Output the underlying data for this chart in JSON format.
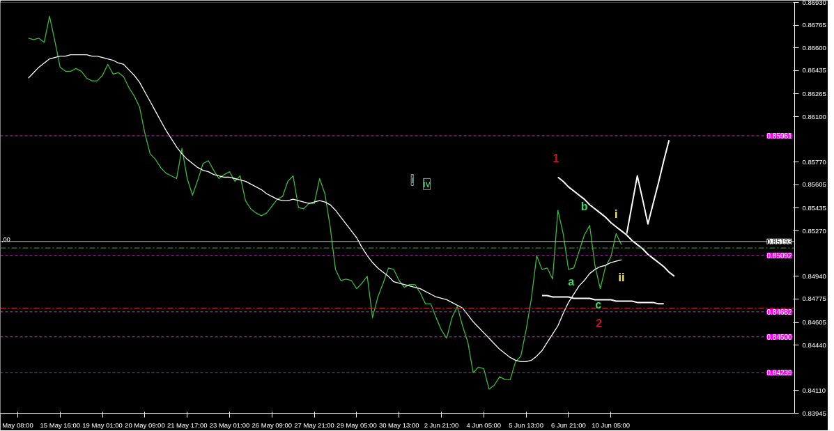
{
  "chart_data": {
    "type": "line",
    "categories": [
      "May 08:00",
      null,
      null,
      null,
      null,
      null,
      null,
      null,
      "15 May 16:00",
      null,
      null,
      null,
      null,
      null,
      null,
      null,
      "19 May 01:00",
      null,
      null,
      null,
      null,
      null,
      null,
      null,
      "20 May 09:00",
      null,
      null,
      null,
      null,
      null,
      null,
      null,
      "21 May 17:00",
      null,
      null,
      null,
      null,
      null,
      null,
      null,
      "23 May 01:00",
      null,
      null,
      null,
      null,
      null,
      null,
      null,
      "26 May 09:00",
      null,
      null,
      null,
      null,
      null,
      null,
      null,
      "27 May 21:00",
      null,
      null,
      null,
      null,
      null,
      null,
      null,
      "29 May 05:00",
      null,
      null,
      null,
      null,
      null,
      null,
      null,
      "30 May 13:00",
      null,
      null,
      null,
      null,
      null,
      null,
      null,
      "2 Jun 21:00",
      null,
      null,
      null,
      null,
      null,
      null,
      null,
      "4 Jun 05:00",
      null,
      null,
      null,
      null,
      null,
      null,
      null,
      "5 Jun 13:00",
      null,
      null,
      null,
      null,
      null,
      null,
      null,
      "6 Jun 21:00",
      null,
      null,
      null,
      null,
      null,
      null,
      null,
      "10 Jun 05:00",
      null,
      null,
      null,
      null,
      null,
      null,
      null,
      null,
      null,
      null,
      null,
      null,
      null,
      null,
      null,
      null,
      null,
      null,
      null,
      null,
      null,
      null,
      null,
      null,
      null,
      null,
      null,
      null,
      null,
      null,
      null,
      null,
      null
    ],
    "ylim": [
      0.83945,
      0.8693
    ],
    "yticks": [
      {
        "value": 0.8693,
        "label": "0.86930"
      },
      {
        "value": 0.86765,
        "label": "0.86765"
      },
      {
        "value": 0.866,
        "label": "0.86600"
      },
      {
        "value": 0.86435,
        "label": "0.86435"
      },
      {
        "value": 0.86265,
        "label": "0.86265"
      },
      {
        "value": 0.861,
        "label": "0.86100"
      },
      {
        "value": 0.8577,
        "label": "0.85770"
      },
      {
        "value": 0.85605,
        "label": "0.85605"
      },
      {
        "value": 0.85435,
        "label": "0.85435"
      },
      {
        "value": 0.8527,
        "label": "0.85270"
      },
      {
        "value": 0.8494,
        "label": "0.84940"
      },
      {
        "value": 0.84775,
        "label": "0.84775"
      },
      {
        "value": 0.84605,
        "label": "0.84605"
      },
      {
        "value": 0.8444,
        "label": "0.84440"
      },
      {
        "value": 0.8411,
        "label": "0.84110"
      },
      {
        "value": 0.83945,
        "label": "0.83945"
      }
    ],
    "grid": false,
    "line_style": "solid",
    "series": [
      {
        "color": "#3cb93c",
        "values": [
          null,
          null,
          0.8667,
          0.8666,
          0.8667,
          0.8664,
          0.8683,
          0.8665,
          0.8646,
          0.8643,
          0.8643,
          0.8645,
          0.8643,
          0.8638,
          0.8636,
          0.8636,
          0.864,
          0.8648,
          0.8641,
          0.8642,
          0.8639,
          0.8631,
          0.8625,
          0.8617,
          0.8598,
          0.8583,
          0.8579,
          0.8573,
          0.8569,
          0.8567,
          0.8565,
          0.8587,
          0.8565,
          0.8553,
          0.8564,
          0.8576,
          0.8578,
          0.8571,
          0.8565,
          0.8568,
          0.857,
          0.8563,
          0.8567,
          0.8549,
          0.8543,
          0.854,
          0.8538,
          0.854,
          0.8545,
          0.855,
          0.8552,
          0.8563,
          0.8567,
          0.8544,
          0.8543,
          0.8547,
          0.8547,
          0.8565,
          0.8554,
          0.853,
          0.8499,
          0.8491,
          0.8492,
          0.8491,
          0.8485,
          0.8489,
          0.8494,
          0.8464,
          0.8479,
          0.8489,
          0.85,
          0.8499,
          0.8491,
          0.8486,
          0.8488,
          0.8488,
          0.8482,
          0.8474,
          0.8474,
          0.8464,
          0.8455,
          0.8449,
          0.8464,
          0.8472,
          0.8458,
          0.8446,
          0.8424,
          0.8428,
          0.8427,
          0.8412,
          0.8415,
          0.8421,
          0.8419,
          0.8419,
          0.8432,
          0.8436,
          0.8455,
          0.8478,
          0.8509,
          0.8499,
          0.85,
          0.8492,
          0.8542,
          0.8525,
          0.8499,
          0.85,
          0.8512,
          0.8524,
          0.8531,
          0.8502,
          0.8485,
          0.8501,
          0.8508,
          0.8525,
          0.8517,
          null,
          null,
          null,
          null,
          null,
          null,
          null,
          null,
          null,
          null,
          null,
          null,
          null,
          null,
          null,
          null,
          null,
          null,
          null,
          null,
          null,
          null,
          null,
          null,
          null,
          null,
          null,
          null,
          null,
          null,
          null
        ]
      },
      {
        "color": "#ffffff",
        "values": [
          null,
          null,
          0.8638,
          0.8642,
          0.8646,
          0.8649,
          0.8652,
          0.8653,
          0.8654,
          0.8654,
          0.8655,
          0.8655,
          0.8655,
          0.8655,
          0.8654,
          0.8654,
          0.8653,
          0.8652,
          0.8651,
          0.8649,
          0.8648,
          0.8644,
          0.864,
          0.8635,
          0.8628,
          0.8621,
          0.8614,
          0.8607,
          0.86,
          0.8594,
          0.8588,
          0.8583,
          0.8579,
          0.8576,
          0.8573,
          0.8571,
          0.857,
          0.8568,
          0.8567,
          0.8566,
          0.8566,
          0.8565,
          0.8564,
          0.8563,
          0.8561,
          0.8559,
          0.8557,
          0.8554,
          0.8552,
          0.855,
          0.8549,
          0.8549,
          0.855,
          0.8549,
          0.8548,
          0.8547,
          0.8548,
          0.8549,
          0.8548,
          0.8546,
          0.8542,
          0.8537,
          0.8532,
          0.8527,
          0.8522,
          0.8515,
          0.8509,
          0.8504,
          0.85,
          0.8497,
          0.8494,
          0.849,
          0.8489,
          0.8488,
          0.8487,
          0.8486,
          0.8485,
          0.8483,
          0.8481,
          0.8479,
          0.8478,
          0.8477,
          0.8475,
          0.8473,
          0.8471,
          0.8466,
          0.8461,
          0.8457,
          0.8453,
          0.8449,
          0.8445,
          0.8441,
          0.8438,
          0.8435,
          0.8433,
          0.8432,
          0.8432,
          0.8433,
          0.8436,
          0.844,
          0.8446,
          0.8452,
          0.8458,
          0.8467,
          0.8475,
          0.8481,
          0.8487,
          0.8491,
          0.8496,
          0.8499,
          0.8501,
          0.8502,
          0.8504,
          0.8505,
          0.8506,
          null,
          null,
          null,
          null,
          null,
          null,
          null,
          null,
          null,
          null,
          null,
          null,
          null,
          null,
          null,
          null,
          null,
          null,
          null,
          null,
          null,
          null,
          null,
          null,
          null,
          null,
          null,
          null,
          null,
          null,
          null
        ]
      },
      {
        "color": "#ffffff",
        "values": [
          null,
          null,
          null,
          null,
          null,
          null,
          null,
          null,
          null,
          null,
          null,
          null,
          null,
          null,
          null,
          null,
          null,
          null,
          null,
          null,
          null,
          null,
          null,
          null,
          null,
          null,
          null,
          null,
          null,
          null,
          null,
          null,
          null,
          null,
          null,
          null,
          null,
          null,
          null,
          null,
          null,
          null,
          null,
          null,
          null,
          null,
          null,
          null,
          null,
          null,
          null,
          null,
          null,
          null,
          null,
          null,
          null,
          null,
          null,
          null,
          null,
          null,
          null,
          null,
          null,
          null,
          null,
          null,
          null,
          null,
          null,
          null,
          null,
          null,
          null,
          null,
          null,
          null,
          null,
          null,
          null,
          null,
          null,
          null,
          null,
          null,
          null,
          null,
          null,
          null,
          null,
          null,
          null,
          null,
          null,
          null,
          null,
          null,
          null,
          null,
          null,
          null,
          null,
          null,
          null,
          null,
          null,
          null,
          null,
          null,
          null,
          null,
          null,
          null,
          null,
          0.8525,
          0.8546,
          0.8567,
          0.855,
          0.8532,
          0.8547,
          0.8562,
          0.8578,
          0.8593,
          null,
          null,
          null,
          null,
          null,
          null,
          null,
          null,
          null,
          null,
          null,
          null,
          null,
          null,
          null,
          null,
          null,
          null,
          null,
          null,
          null,
          null
        ]
      },
      {
        "color": "#ffffff",
        "values": [
          null,
          null,
          null,
          null,
          null,
          null,
          null,
          null,
          null,
          null,
          null,
          null,
          null,
          null,
          null,
          null,
          null,
          null,
          null,
          null,
          null,
          null,
          null,
          null,
          null,
          null,
          null,
          null,
          null,
          null,
          null,
          null,
          null,
          null,
          null,
          null,
          null,
          null,
          null,
          null,
          null,
          null,
          null,
          null,
          null,
          null,
          null,
          null,
          null,
          null,
          null,
          null,
          null,
          null,
          null,
          null,
          null,
          null,
          null,
          null,
          null,
          null,
          null,
          null,
          null,
          null,
          null,
          null,
          null,
          null,
          null,
          null,
          null,
          null,
          null,
          null,
          null,
          null,
          null,
          null,
          null,
          null,
          null,
          null,
          null,
          null,
          null,
          null,
          null,
          null,
          null,
          null,
          null,
          null,
          null,
          null,
          null,
          null,
          null,
          null,
          null,
          null,
          0.8566,
          0.8563,
          0.8559,
          0.8556,
          0.8553,
          0.855,
          0.8546,
          0.8543,
          0.854,
          0.8537,
          0.8533,
          0.853,
          0.8527,
          0.8524,
          0.852,
          0.8517,
          0.8514,
          0.851,
          0.8507,
          0.8504,
          0.8501,
          0.8497,
          0.8494,
          null,
          null,
          null,
          null,
          null,
          null,
          null,
          null,
          null,
          null,
          null,
          null,
          null,
          null,
          null,
          null,
          null,
          null,
          null,
          null,
          null
        ]
      },
      {
        "color": "#ffffff",
        "values": [
          null,
          null,
          null,
          null,
          null,
          null,
          null,
          null,
          null,
          null,
          null,
          null,
          null,
          null,
          null,
          null,
          null,
          null,
          null,
          null,
          null,
          null,
          null,
          null,
          null,
          null,
          null,
          null,
          null,
          null,
          null,
          null,
          null,
          null,
          null,
          null,
          null,
          null,
          null,
          null,
          null,
          null,
          null,
          null,
          null,
          null,
          null,
          null,
          null,
          null,
          null,
          null,
          null,
          null,
          null,
          null,
          null,
          null,
          null,
          null,
          null,
          null,
          null,
          null,
          null,
          null,
          null,
          null,
          null,
          null,
          null,
          null,
          null,
          null,
          null,
          null,
          null,
          null,
          null,
          null,
          null,
          null,
          null,
          null,
          null,
          null,
          null,
          null,
          null,
          null,
          null,
          null,
          null,
          null,
          null,
          null,
          null,
          null,
          null,
          0.848,
          0.848,
          0.8479,
          0.8479,
          0.8479,
          0.8479,
          0.8478,
          0.8478,
          0.8478,
          0.8478,
          0.8477,
          0.8477,
          0.8477,
          0.8477,
          0.8476,
          0.8476,
          0.8476,
          0.8476,
          0.8475,
          0.8475,
          0.8475,
          0.8475,
          0.8474,
          0.8474,
          null,
          null,
          null,
          null,
          null,
          null,
          null,
          null,
          null,
          null,
          null,
          null,
          null,
          null,
          null,
          null,
          null,
          null,
          null,
          null,
          null,
          null,
          null
        ]
      }
    ],
    "ref_lines": [
      {
        "axis": "y",
        "value": 0.85961,
        "label": "0.85961",
        "color": "#c030c0",
        "line_style": "dashed"
      },
      {
        "axis": "y",
        "value": 0.85193,
        "label": "0.85193",
        "color": "#c0c0c0",
        "line_style": "solid"
      },
      {
        "axis": "y",
        "value": 0.85146,
        "color": "#4f9f4f",
        "line_style": "dashdot"
      },
      {
        "axis": "y",
        "value": 0.85092,
        "label": "0.85092",
        "color": "#c030c0",
        "line_style": "dashed"
      },
      {
        "axis": "y",
        "value": 0.84709,
        "color": "#d02040",
        "line_style": "dashdot"
      },
      {
        "axis": "y",
        "value": 0.84682,
        "label": "0.84682",
        "color": "#c030c0",
        "line_style": "dashed"
      },
      {
        "axis": "y",
        "value": 0.845,
        "label": "0.84500",
        "color": "#c030c0",
        "line_style": "dashed"
      },
      {
        "axis": "y",
        "value": 0.84239,
        "label": "0.84239",
        "color": "#c030c0",
        "line_style": "dashed"
      }
    ],
    "annotations": [
      "1",
      "2",
      "a",
      "b",
      "c",
      "i",
      "ii",
      "i",
      "iv",
      ",00"
    ]
  }
}
